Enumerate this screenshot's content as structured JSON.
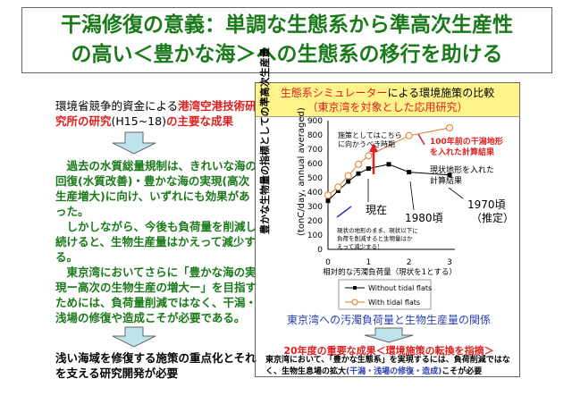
{
  "title": {
    "line1": "干潟修復の意義：単調な生態系から準高次生産性",
    "line2": "の高い＜豊かな海＞への生態系の移行を助ける"
  },
  "left": {
    "intro_a": "環境省競争的資金による",
    "intro_b": "港湾空港技術研究所の研究",
    "intro_c": "(H15~18)",
    "intro_d": "の主要な成果",
    "p1": "過去の水質総量規制は、きれいな海の回復(水質改善)・豊かな海の実現(高次生産増大)に向け、いずれにも効果があった。",
    "p2": "しかしながら、今後も負荷量を削減し続けると、生物生産量はかえって減少する。",
    "p3": "東京湾においてさらに「豊かな海の実現ー高次の生物生産の増大ー」を目指すためには、負荷量削減ではなく、干潟・浅場の修復や造成こそが必要である。",
    "conclusion": "浅い海域を修復する施策の重点化とそれを支える研究開発が必要"
  },
  "panel": {
    "head_a": "生態系シミュレーター",
    "head_b": "による環境施策の比較",
    "head_c": "（東京湾を対象とした応用研究）"
  },
  "chart_data": {
    "type": "line",
    "ylabel": "豊かな生物量の指標としての準高次生産量",
    "ylabel2": "(tonC/day, annual averaged)",
    "xlabel": "相対的な汚濁負荷量（現状を1とする）",
    "xlim": [
      0,
      3
    ],
    "ylim": [
      0,
      900
    ],
    "xticks": [
      "0",
      "1",
      "2",
      "3"
    ],
    "yticks": [
      "0",
      "100",
      "200",
      "300",
      "400",
      "500",
      "600",
      "700",
      "800",
      "900"
    ],
    "series": [
      {
        "name": "Without tidal flats",
        "color": "#000000",
        "x": [
          0,
          0.25,
          0.5,
          0.75,
          1,
          1.5,
          2,
          3
        ],
        "y": [
          340,
          410,
          475,
          530,
          565,
          595,
          540,
          520
        ]
      },
      {
        "name": "With tidal flats",
        "color": "#e07a20",
        "x": [
          0,
          0.25,
          0.5,
          0.75,
          1,
          2,
          3
        ],
        "y": [
          380,
          435,
          515,
          595,
          655,
          795,
          850
        ]
      }
    ],
    "annotations": {
      "policy": [
        "施策としてはこちら",
        "に向かうべき時期"
      ],
      "past100": [
        "100年前の干潟地形",
        "を入れた計算結果"
      ],
      "current_terrain": [
        "現状地形を入れた",
        "計算結果"
      ],
      "now": "現在",
      "y1980": "1980頃",
      "y1970": [
        "1970頃",
        "（推定）"
      ],
      "warning": [
        "現状の地形のまま、現状以下に",
        "負荷を削減すると生物量はか",
        "えって減少する！"
      ]
    }
  },
  "caption": "東京湾への汚濁負荷量と生物生産量の関係",
  "result": {
    "title": "20年度の重要な成果＜環境施策の転換を指摘＞",
    "body_a": "東京湾において、「豊かな生態系」を実現するには、負荷削減ではなく、生物生息場の拡大",
    "body_b": "(干潟・浅場の修復・造成)",
    "body_c": "こそが必要"
  }
}
